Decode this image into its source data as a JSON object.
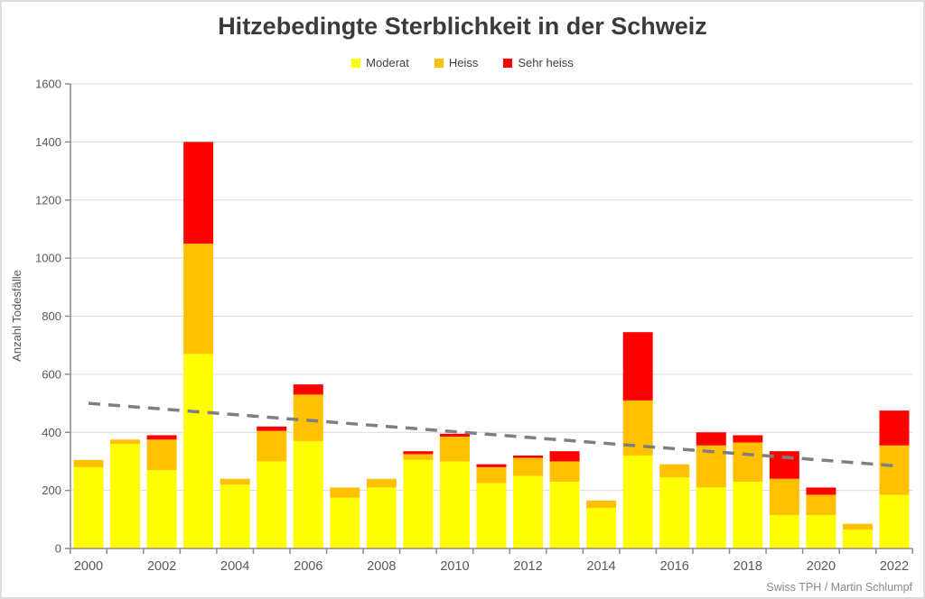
{
  "title": "Hitzebedingte Sterblichkeit in der Schweiz",
  "attribution": "Swiss TPH / Martin Schlumpf",
  "colors": {
    "moderat": "#FFFF00",
    "heiss": "#FFC000",
    "sehr_heiss": "#FF0000",
    "trend": "#7f7f7f",
    "gridline": "#d9d9d9",
    "axis": "#8c8c8c",
    "tick_text": "#595959",
    "title_text": "#3b3b3b"
  },
  "chart_data": {
    "type": "bar",
    "stacked": true,
    "title": "Hitzebedingte Sterblichkeit in der Schweiz",
    "xlabel": "",
    "ylabel": "Anzahl Todesfälle",
    "ylim": [
      0,
      1600
    ],
    "ytick_step": 200,
    "grid": true,
    "legend_position": "top-center",
    "categories": [
      2000,
      2001,
      2002,
      2003,
      2004,
      2005,
      2006,
      2007,
      2008,
      2009,
      2010,
      2011,
      2012,
      2013,
      2014,
      2015,
      2016,
      2017,
      2018,
      2019,
      2020,
      2021,
      2022
    ],
    "xtick_labels_shown": [
      "2000",
      "2002",
      "2004",
      "2006",
      "2008",
      "2010",
      "2012",
      "2014",
      "2016",
      "2018",
      "2020",
      "2022"
    ],
    "series": [
      {
        "name": "Moderat",
        "color": "#FFFF00",
        "values": [
          280,
          360,
          270,
          670,
          220,
          300,
          370,
          175,
          210,
          305,
          300,
          225,
          250,
          230,
          140,
          320,
          245,
          210,
          230,
          115,
          115,
          65,
          185
        ]
      },
      {
        "name": "Heiss",
        "color": "#FFC000",
        "values": [
          25,
          15,
          105,
          380,
          20,
          105,
          160,
          35,
          30,
          20,
          85,
          55,
          62,
          70,
          25,
          190,
          45,
          145,
          135,
          125,
          70,
          20,
          170
        ]
      },
      {
        "name": "Sehr heiss",
        "color": "#FF0000",
        "values": [
          0,
          0,
          15,
          350,
          0,
          15,
          35,
          0,
          0,
          10,
          10,
          10,
          8,
          35,
          0,
          235,
          0,
          45,
          25,
          95,
          25,
          0,
          120
        ]
      }
    ],
    "totals": [
      305,
      375,
      390,
      1400,
      240,
      420,
      565,
      210,
      240,
      335,
      395,
      290,
      320,
      335,
      165,
      745,
      290,
      400,
      390,
      335,
      210,
      85,
      475
    ],
    "trend_line": {
      "style": "dashed",
      "color": "#7f7f7f",
      "points": [
        {
          "x": 2000,
          "y": 500
        },
        {
          "x": 2022,
          "y": 285
        }
      ]
    }
  }
}
